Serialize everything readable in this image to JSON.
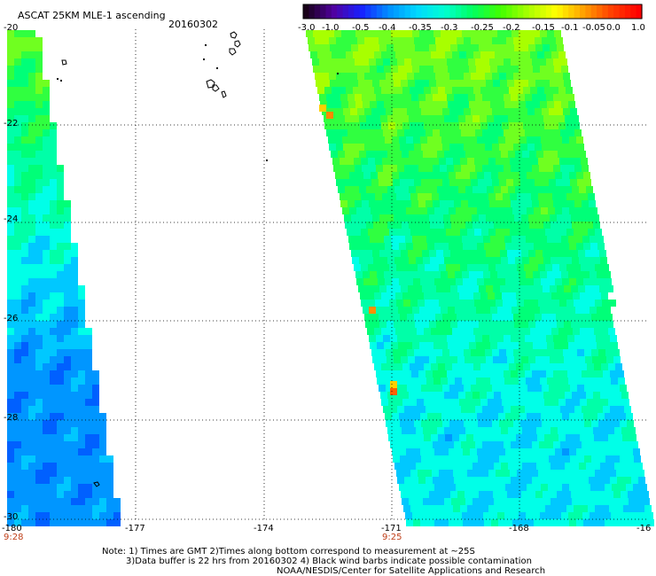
{
  "header": {
    "title": "ASCAT 25KM MLE-1 ascending",
    "date": "20160302"
  },
  "colorbar": {
    "labels": [
      "-3.0",
      "-1.0",
      "-0.5",
      "-0.4",
      "-0.35",
      "-0.3",
      "-0.25",
      "-0.2",
      "-0.15",
      "-0.1",
      "-0.05",
      "0.0",
      "1.0"
    ],
    "colors": [
      "#180018",
      "#5000a0",
      "#1820ff",
      "#0090ff",
      "#00d8ff",
      "#00ffd0",
      "#00ff60",
      "#40ff00",
      "#a8ff00",
      "#ffff00",
      "#ffa000",
      "#ff4000",
      "#ff0000"
    ]
  },
  "axes": {
    "lat_labels": [
      "-20",
      "-22",
      "-24",
      "-26",
      "-28",
      "-30"
    ],
    "lon_labels": [
      "-180",
      "-177",
      "-174",
      "-171",
      "-168",
      "-16"
    ]
  },
  "swath_times": [
    "9:28",
    "9:25"
  ],
  "notes": [
    "Note: 1) Times are GMT 2)Times along bottom correspond to measurement at ~25S",
    "3)Data buffer is 22 hrs from 20160302 4) Black wind barbs indicate possible contamination",
    "NOAA/NESDIS/Center for Satellite Applications and Research"
  ]
}
